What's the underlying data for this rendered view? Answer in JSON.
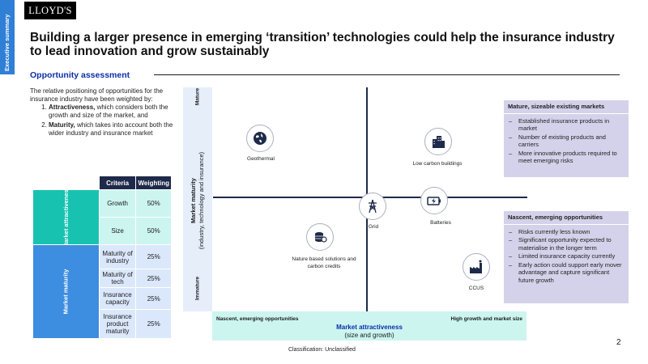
{
  "side_tab": "Executive summary",
  "logo": "LLOYD'S",
  "title": "Building a larger presence in emerging ‘transition’ technologies could help the insurance industry to lead innovation and grow sustainably",
  "section": "Opportunity assessment",
  "intro": {
    "text": "The relative positioning of opportunities for the insurance industry have been weighted by:",
    "points": [
      {
        "bold": "Attractiveness,",
        "rest": " which considers both the growth and size of the market, and"
      },
      {
        "bold": "Maturity,",
        "rest": " which takes into account both the wider industry and insurance market"
      }
    ]
  },
  "table": {
    "headers": [
      "Criteria",
      "Weighting"
    ],
    "groups": [
      {
        "name": "Market attractiveness",
        "color": "#17c3b0",
        "rows": [
          [
            "Growth",
            "50%"
          ],
          [
            "Size",
            "50%"
          ]
        ]
      },
      {
        "name": "Market maturity",
        "color": "#3d8de0",
        "rows": [
          [
            "Maturity of industry",
            "25%"
          ],
          [
            "Maturity of tech",
            "25%"
          ],
          [
            "Insurance capacity",
            "25%"
          ],
          [
            "Insurance product maturity",
            "25%"
          ]
        ]
      }
    ]
  },
  "y_axis": {
    "top": "Mature",
    "bottom": "Immature",
    "title": "Market maturity",
    "subtitle": "(industry, technology and insurance)"
  },
  "x_axis": {
    "left": "Nascent, emerging opportunities",
    "right": "High growth and market size",
    "title": "Market attractiveness",
    "subtitle": "(size and growth)"
  },
  "items": [
    {
      "label": "Geothermal",
      "icon": "globe-icon"
    },
    {
      "label": "Low carbon buildings",
      "icon": "buildings-icon"
    },
    {
      "label": "Grid",
      "icon": "pylon-icon"
    },
    {
      "label": "Batteries",
      "icon": "battery-icon"
    },
    {
      "label": "Nature based solutions and carbon credits",
      "icon": "coins-icon"
    },
    {
      "label": "CCUS",
      "icon": "factory-icon"
    }
  ],
  "box_top": {
    "heading": "Mature, sizeable existing markets",
    "bullets": [
      "Established insurance products in market",
      "Number of existing products and carriers",
      "More innovative products required to meet emerging risks"
    ]
  },
  "box_bottom": {
    "heading": "Nascent, emerging opportunities",
    "bullets": [
      "Risks currently less known",
      "Significant opportunity expected to materialise in the longer term",
      "Limited insurance capacity currently",
      "Early action could support early mover advantage and capture significant future growth"
    ]
  },
  "page_number": "2",
  "classification": "Classification: Unclassified"
}
